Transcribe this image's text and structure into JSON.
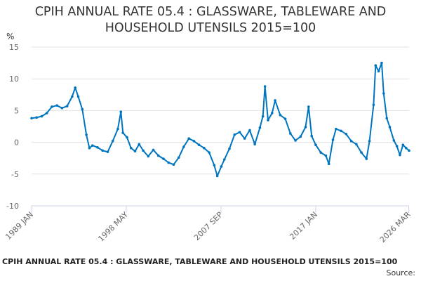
{
  "chart_data": {
    "type": "line",
    "title_line1": "CPIH ANNUAL RATE 05.4 : GLASSWARE, TABLEWARE AND",
    "title_line2": "HOUSEHOLD UTENSILS 2015=100",
    "ylabel": "%",
    "ylim": [
      -10,
      15
    ],
    "yticks": [
      "15",
      "10",
      "5",
      "0",
      "-5",
      "-10"
    ],
    "xlabels": [
      "1989 JAN",
      "1998 MAY",
      "2007 SEP",
      "2017 JAN",
      "2026 MAR"
    ],
    "series_color": "#0075bf",
    "series": [
      {
        "name": "CPIH annual rate 05.4",
        "points": [
          [
            1989.0,
            3.8
          ],
          [
            1989.5,
            3.9
          ],
          [
            1990.0,
            4.1
          ],
          [
            1990.5,
            4.6
          ],
          [
            1991.0,
            5.6
          ],
          [
            1991.5,
            5.8
          ],
          [
            1992.0,
            5.4
          ],
          [
            1992.5,
            5.7
          ],
          [
            1993.0,
            7.2
          ],
          [
            1993.3,
            8.6
          ],
          [
            1993.6,
            7.2
          ],
          [
            1994.0,
            5.2
          ],
          [
            1994.4,
            1.2
          ],
          [
            1994.7,
            -0.9
          ],
          [
            1995.0,
            -0.5
          ],
          [
            1995.5,
            -0.8
          ],
          [
            1996.0,
            -1.3
          ],
          [
            1996.5,
            -1.5
          ],
          [
            1997.0,
            0.2
          ],
          [
            1997.5,
            2.1
          ],
          [
            1997.8,
            4.8
          ],
          [
            1998.0,
            1.5
          ],
          [
            1998.4,
            0.8
          ],
          [
            1998.8,
            -0.9
          ],
          [
            1999.2,
            -1.4
          ],
          [
            1999.6,
            -0.3
          ],
          [
            2000.0,
            -1.3
          ],
          [
            2000.5,
            -2.2
          ],
          [
            2001.0,
            -1.2
          ],
          [
            2001.5,
            -2.1
          ],
          [
            2002.0,
            -2.6
          ],
          [
            2002.5,
            -3.2
          ],
          [
            2003.0,
            -3.5
          ],
          [
            2003.5,
            -2.4
          ],
          [
            2004.0,
            -0.7
          ],
          [
            2004.5,
            0.6
          ],
          [
            2005.0,
            0.2
          ],
          [
            2005.5,
            -0.4
          ],
          [
            2006.0,
            -0.9
          ],
          [
            2006.5,
            -1.6
          ],
          [
            2007.0,
            -3.6
          ],
          [
            2007.3,
            -5.3
          ],
          [
            2007.7,
            -3.8
          ],
          [
            2008.0,
            -2.7
          ],
          [
            2008.5,
            -1.0
          ],
          [
            2009.0,
            1.2
          ],
          [
            2009.5,
            1.6
          ],
          [
            2010.0,
            0.6
          ],
          [
            2010.5,
            1.9
          ],
          [
            2011.0,
            -0.3
          ],
          [
            2011.5,
            2.3
          ],
          [
            2011.8,
            4.1
          ],
          [
            2012.0,
            8.8
          ],
          [
            2012.3,
            3.5
          ],
          [
            2012.7,
            4.6
          ],
          [
            2013.0,
            6.6
          ],
          [
            2013.5,
            4.3
          ],
          [
            2014.0,
            3.7
          ],
          [
            2014.5,
            1.4
          ],
          [
            2015.0,
            0.3
          ],
          [
            2015.5,
            0.9
          ],
          [
            2016.0,
            2.4
          ],
          [
            2016.3,
            5.6
          ],
          [
            2016.6,
            1.0
          ],
          [
            2017.0,
            -0.4
          ],
          [
            2017.5,
            -1.6
          ],
          [
            2018.0,
            -2.1
          ],
          [
            2018.3,
            -3.4
          ],
          [
            2018.7,
            0.4
          ],
          [
            2019.0,
            2.1
          ],
          [
            2019.5,
            1.8
          ],
          [
            2020.0,
            1.3
          ],
          [
            2020.5,
            0.2
          ],
          [
            2021.0,
            -0.3
          ],
          [
            2021.5,
            -1.6
          ],
          [
            2022.0,
            -2.6
          ],
          [
            2022.3,
            0.2
          ],
          [
            2022.7,
            5.9
          ],
          [
            2022.9,
            12.1
          ],
          [
            2023.2,
            11.2
          ],
          [
            2023.5,
            12.5
          ],
          [
            2023.7,
            7.7
          ],
          [
            2024.0,
            3.8
          ],
          [
            2024.3,
            2.4
          ],
          [
            2024.7,
            0.3
          ],
          [
            2025.0,
            -0.6
          ],
          [
            2025.3,
            -2.0
          ],
          [
            2025.6,
            -0.4
          ],
          [
            2025.9,
            -0.9
          ],
          [
            2026.2,
            -1.3
          ]
        ]
      }
    ]
  },
  "footer": {
    "chart_title": "CPIH ANNUAL RATE 05.4 : GLASSWARE, TABLEWARE AND HOUSEHOLD UTENSILS 2015=100",
    "source_label": "Source:"
  }
}
